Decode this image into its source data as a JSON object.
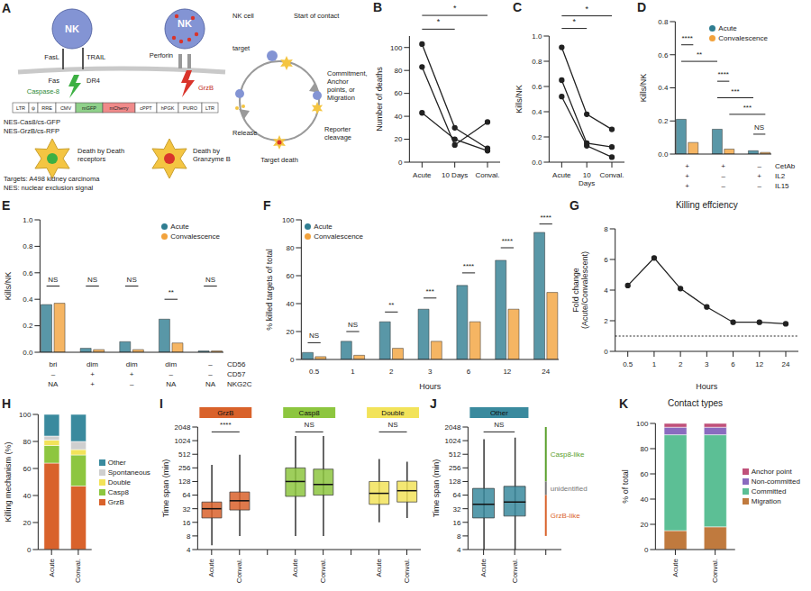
{
  "diagram": {
    "panel": "A",
    "nk": "NK",
    "ligands": [
      "FasL",
      "TRAIL"
    ],
    "receptors": [
      "Fas",
      "DR4"
    ],
    "caspase": "Caspase-8",
    "perforin": "Perforin",
    "granzyme": "GrzB",
    "vector": [
      "LTR",
      "ψ",
      "RRE",
      "CMV",
      "mGFP",
      "mCherry",
      "cPPT",
      "hPGK",
      "PURO",
      "LTR"
    ],
    "reporters": [
      "NES-Cas8/cs-GFP",
      "NES-GrzB/cs-RFP"
    ],
    "deaths": [
      "Death by Death receptors",
      "Death by Granzyme B"
    ],
    "notes": [
      "Targets: A498 kidney carcinoma",
      "NES: nuclear exclusion signal"
    ],
    "cycle": [
      "NK cell",
      "target",
      "Start of contact",
      "Commitment, Anchor points, or Migration",
      "Reporter cleavage",
      "Target death",
      "Release"
    ]
  },
  "chart_data": [
    {
      "panel": "B",
      "type": "line",
      "categories": [
        "Acute",
        "10 Days",
        "Conval."
      ],
      "series": [
        {
          "color": "#222222",
          "values": [
            103,
            30,
            12
          ]
        },
        {
          "color": "#222222",
          "values": [
            83,
            15,
            35
          ]
        },
        {
          "color": "#222222",
          "values": [
            43,
            20,
            10
          ]
        }
      ],
      "marker": "circle",
      "y_label": "Number of deaths",
      "ylim": [
        0,
        110
      ],
      "yticks": [
        0,
        20,
        40,
        60,
        80,
        100
      ],
      "comparisons": [
        {
          "from": "Acute",
          "to": "10 Days",
          "y": 116,
          "label": "*"
        },
        {
          "from": "Acute",
          "to": "Conval.",
          "y": 128,
          "label": "*"
        }
      ]
    },
    {
      "panel": "C",
      "type": "line",
      "categories": [
        "Acute",
        "10 Days",
        "Conval."
      ],
      "series": [
        {
          "color": "#222222",
          "values": [
            0.91,
            0.38,
            0.26
          ]
        },
        {
          "color": "#222222",
          "values": [
            0.65,
            0.15,
            0.12
          ]
        },
        {
          "color": "#222222",
          "values": [
            0.52,
            0.13,
            0.04
          ]
        }
      ],
      "marker": "circle",
      "y_label": "Kills/NK",
      "ylim": [
        0,
        1
      ],
      "yticks": [
        {
          "value": 0,
          "label": "0.0"
        },
        0.2,
        0.4,
        0.6,
        0.8,
        {
          "value": 1,
          "label": "1.0"
        }
      ],
      "comparisons": [
        {
          "from": "Acute",
          "to": "10 Days",
          "y": 1.06,
          "label": "*"
        },
        {
          "from": "Acute",
          "to": "Conval.",
          "y": 1.16,
          "label": "*"
        }
      ]
    },
    {
      "panel": "D",
      "type": "bar",
      "row_labels": [
        "CetAb",
        "IL2",
        "IL15"
      ],
      "categories": [
        [
          "+",
          "+",
          "+"
        ],
        [
          "+",
          "–",
          "–"
        ],
        [
          "–",
          "+",
          "–"
        ]
      ],
      "series": [
        {
          "name": "Acute",
          "color": "#2f7d91",
          "values": [
            0.21,
            0.15,
            0.02
          ]
        },
        {
          "name": "Convalescence",
          "color": "#f2a23c",
          "values": [
            0.07,
            0.03,
            0.01
          ]
        }
      ],
      "y_label": "Kills/NK",
      "ylim": [
        0,
        0.8
      ],
      "yticks": [
        {
          "value": 0,
          "label": "0.0"
        },
        0.2,
        0.4,
        0.6,
        0.8
      ],
      "legend": "top-right",
      "comparisons": [
        {
          "a": [
            0,
            0
          ],
          "b": [
            0,
            1
          ],
          "y": 0.66,
          "label": "****"
        },
        {
          "a": [
            0,
            0
          ],
          "b": [
            1,
            0
          ],
          "y": 0.56,
          "label": "**"
        },
        {
          "a": [
            1,
            0
          ],
          "b": [
            1,
            1
          ],
          "y": 0.44,
          "label": "****"
        },
        {
          "a": [
            1,
            0
          ],
          "b": [
            2,
            0
          ],
          "y": 0.34,
          "label": "***"
        },
        {
          "a": [
            1,
            1
          ],
          "b": [
            2,
            1
          ],
          "y": 0.24,
          "label": "***"
        },
        {
          "a": [
            2,
            0
          ],
          "b": [
            2,
            1
          ],
          "y": 0.12,
          "label": "NS"
        }
      ]
    },
    {
      "panel": "E",
      "type": "bar",
      "row_labels": [
        "CD56",
        "CD57",
        "NKG2C"
      ],
      "categories": [
        [
          "bri",
          "–",
          "NA"
        ],
        [
          "dim",
          "+",
          "+"
        ],
        [
          "dim",
          "+",
          "–"
        ],
        [
          "dim",
          "–",
          "NA"
        ],
        [
          "–",
          "–",
          "NA"
        ]
      ],
      "series": [
        {
          "name": "Acute",
          "color": "#2f7d91",
          "values": [
            0.36,
            0.03,
            0.08,
            0.25,
            0.01
          ]
        },
        {
          "name": "Convalescence",
          "color": "#f2a23c",
          "values": [
            0.37,
            0.02,
            0.02,
            0.07,
            0.01
          ]
        }
      ],
      "y_label": "Kills/NK",
      "ylim": [
        0,
        1
      ],
      "yticks": [
        {
          "value": 0,
          "label": "0.0"
        },
        0.2,
        0.4,
        0.6,
        0.8,
        {
          "value": 1,
          "label": "1.0"
        }
      ],
      "legend": "top-right",
      "comparisons": [
        {
          "a": [
            0,
            0
          ],
          "b": [
            0,
            1
          ],
          "y": 0.5,
          "label": "NS"
        },
        {
          "a": [
            1,
            0
          ],
          "b": [
            1,
            1
          ],
          "y": 0.5,
          "label": "NS"
        },
        {
          "a": [
            2,
            0
          ],
          "b": [
            2,
            1
          ],
          "y": 0.5,
          "label": "NS"
        },
        {
          "a": [
            3,
            0
          ],
          "b": [
            3,
            1
          ],
          "y": 0.4,
          "label": "**"
        },
        {
          "a": [
            4,
            0
          ],
          "b": [
            4,
            1
          ],
          "y": 0.5,
          "label": "NS"
        }
      ]
    },
    {
      "panel": "F",
      "type": "bar",
      "categories": [
        "0.5",
        "1",
        "2",
        "3",
        "6",
        "12",
        "24"
      ],
      "series": [
        {
          "name": "Acute",
          "color": "#2f7d91",
          "values": [
            5,
            13,
            27,
            36,
            53,
            71,
            91
          ]
        },
        {
          "name": "Convalescence",
          "color": "#f2a23c",
          "values": [
            2,
            3,
            8,
            13,
            27,
            36,
            48
          ]
        }
      ],
      "x_label": "Hours",
      "y_label": "% killed targets of total",
      "ylim": [
        0,
        100
      ],
      "yticks": [
        0,
        20,
        40,
        60,
        80,
        100
      ],
      "legend": "top-left",
      "comparisons": [
        {
          "a": [
            0,
            0
          ],
          "b": [
            0,
            1
          ],
          "y": 12,
          "label": "NS"
        },
        {
          "a": [
            1,
            0
          ],
          "b": [
            1,
            1
          ],
          "y": 20,
          "label": "NS"
        },
        {
          "a": [
            2,
            0
          ],
          "b": [
            2,
            1
          ],
          "y": 34,
          "label": "**"
        },
        {
          "a": [
            3,
            0
          ],
          "b": [
            3,
            1
          ],
          "y": 44,
          "label": "***"
        },
        {
          "a": [
            4,
            0
          ],
          "b": [
            4,
            1
          ],
          "y": 62,
          "label": "****"
        },
        {
          "a": [
            5,
            0
          ],
          "b": [
            5,
            1
          ],
          "y": 80,
          "label": "****"
        },
        {
          "a": [
            6,
            0
          ],
          "b": [
            6,
            1
          ],
          "y": 97,
          "label": "****"
        }
      ]
    },
    {
      "panel": "G",
      "type": "line",
      "title": "Killing effciency",
      "categories": [
        "0.5",
        "1",
        "2",
        "3",
        "6",
        "12",
        "24"
      ],
      "values": [
        4.3,
        6.1,
        4.1,
        2.9,
        1.9,
        1.9,
        1.8
      ],
      "color": "#222222",
      "marker": "circle",
      "x_label": "Hours",
      "y_label": "Fold change (Acute/Convalescent)",
      "ylim": [
        0,
        8
      ],
      "yticks": [
        0,
        2,
        4,
        6,
        8
      ],
      "baseline": 1
    },
    {
      "panel": "H",
      "type": "bar",
      "stacked": true,
      "categories": [
        "Acute",
        "Conval."
      ],
      "series": [
        {
          "name": "GrzB",
          "color": "#d9622b",
          "values": [
            64,
            47
          ]
        },
        {
          "name": "Casp8",
          "color": "#8dc63f",
          "values": [
            13,
            23
          ]
        },
        {
          "name": "Double",
          "color": "#f2e35a",
          "values": [
            4,
            4
          ]
        },
        {
          "name": "Spontaneous",
          "color": "#cfcfcf",
          "values": [
            3,
            6
          ]
        },
        {
          "name": "Other",
          "color": "#3a8a9e",
          "values": [
            16,
            20
          ]
        }
      ],
      "y_label": "Killing mechanism (%)",
      "ylim": [
        0,
        100
      ],
      "yticks": [
        0,
        20,
        40,
        60,
        80,
        100
      ],
      "legend": "right"
    },
    {
      "panel": "I",
      "type": "box",
      "log": "y",
      "groups": [
        {
          "name": "GrzB",
          "color": "#d9622b",
          "boxes": [
            {
              "category": "Acute",
              "min": 5,
              "q1": 20,
              "median": 32,
              "q3": 45,
              "max": 300
            },
            {
              "category": "Conval.",
              "min": 8,
              "q1": 30,
              "median": 48,
              "q3": 75,
              "max": 500
            }
          ]
        },
        {
          "name": "Casp8",
          "color": "#8dc63f",
          "boxes": [
            {
              "category": "Acute",
              "min": 8,
              "q1": 60,
              "median": 128,
              "q3": 256,
              "max": 1300
            },
            {
              "category": "Conval.",
              "min": 8,
              "q1": 64,
              "median": 110,
              "q3": 240,
              "max": 1300
            }
          ]
        },
        {
          "name": "Double",
          "color": "#f2e35a",
          "boxes": [
            {
              "category": "Acute",
              "min": 16,
              "q1": 40,
              "median": 70,
              "q3": 128,
              "max": 400
            },
            {
              "category": "Conval.",
              "min": 20,
              "q1": 45,
              "median": 80,
              "q3": 130,
              "max": 350
            }
          ]
        }
      ],
      "y_label": "Time span (min)",
      "ylim": [
        4,
        2048
      ],
      "yticks": [
        4,
        8,
        16,
        32,
        64,
        128,
        256,
        512,
        1024,
        2048
      ],
      "comparisons": [
        {
          "group": 0,
          "y": 1600,
          "label": "****"
        },
        {
          "group": 1,
          "y": 1600,
          "label": "NS"
        },
        {
          "group": 2,
          "y": 1600,
          "label": "NS"
        }
      ]
    },
    {
      "panel": "J",
      "type": "box",
      "log": "y",
      "groups": [
        {
          "name": "Other",
          "color": "#3a8a9e",
          "boxes": [
            {
              "category": "Acute",
              "min": 4,
              "q1": 20,
              "median": 40,
              "q3": 90,
              "max": 1100
            },
            {
              "category": "Conval.",
              "min": 4,
              "q1": 22,
              "median": 45,
              "q3": 100,
              "max": 1200
            }
          ]
        }
      ],
      "y_label": "Time span (min)",
      "ylim": [
        4,
        2048
      ],
      "yticks": [
        4,
        8,
        16,
        32,
        64,
        128,
        256,
        512,
        1024,
        2048
      ],
      "comparisons": [
        {
          "group": 0,
          "y": 1600,
          "label": "NS"
        }
      ],
      "ranges": [
        {
          "label": "Casp8-like",
          "from": 128,
          "to": 2048,
          "color": "#5aa02c"
        },
        {
          "label": "unidentified",
          "from": 64,
          "to": 128,
          "color": "#777777"
        },
        {
          "label": "GrzB-like",
          "from": 8,
          "to": 64,
          "color": "#d9622b"
        }
      ]
    },
    {
      "panel": "K",
      "type": "bar",
      "stacked": true,
      "title": "Contact types",
      "categories": [
        "Acute",
        "Conval."
      ],
      "series": [
        {
          "name": "Migration",
          "color": "#c07a3e",
          "values": [
            15,
            18
          ]
        },
        {
          "name": "Committed",
          "color": "#5cbf95",
          "values": [
            76,
            73
          ]
        },
        {
          "name": "Non-committed",
          "color": "#8a6bbf",
          "values": [
            6,
            6
          ]
        },
        {
          "name": "Anchor point",
          "color": "#c0507a",
          "values": [
            3,
            3
          ]
        }
      ],
      "y_label": "% of total",
      "ylim": [
        0,
        100
      ],
      "yticks": [
        0,
        20,
        40,
        60,
        80,
        100
      ],
      "legend": "right"
    }
  ]
}
